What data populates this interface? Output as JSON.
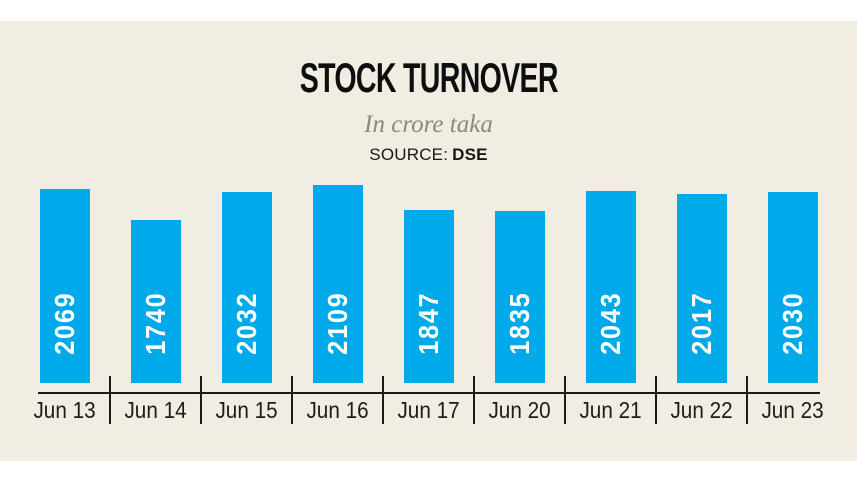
{
  "header": {
    "title": "STOCK TURNOVER",
    "subtitle": "In crore taka",
    "source_label": "SOURCE:",
    "source_value": "DSE"
  },
  "chart_data": {
    "type": "bar",
    "title": "STOCK TURNOVER",
    "subtitle": "In crore taka",
    "source": "DSE",
    "categories": [
      "Jun 13",
      "Jun 14",
      "Jun 15",
      "Jun 16",
      "Jun 17",
      "Jun 20",
      "Jun 21",
      "Jun 22",
      "Jun 23"
    ],
    "values": [
      2069,
      1740,
      2032,
      2109,
      1847,
      1835,
      2043,
      2017,
      2030
    ],
    "xlabel": "",
    "ylabel": "",
    "ylim": [
      0,
      2109
    ],
    "grid": false,
    "legend": false,
    "value_labels_inside_bars": true,
    "bar_color": "#00a9e9",
    "value_label_color": "#ffffff"
  },
  "colors": {
    "page_background": "#ffffff",
    "panel_background": "#f1ede3",
    "bar": "#00a9e9",
    "axis": "#1b1b1b",
    "title_text": "#0e0e0e",
    "subtitle_text": "#8c887e",
    "value_label_text": "#ffffff",
    "x_label_text": "#1c1c1c"
  }
}
